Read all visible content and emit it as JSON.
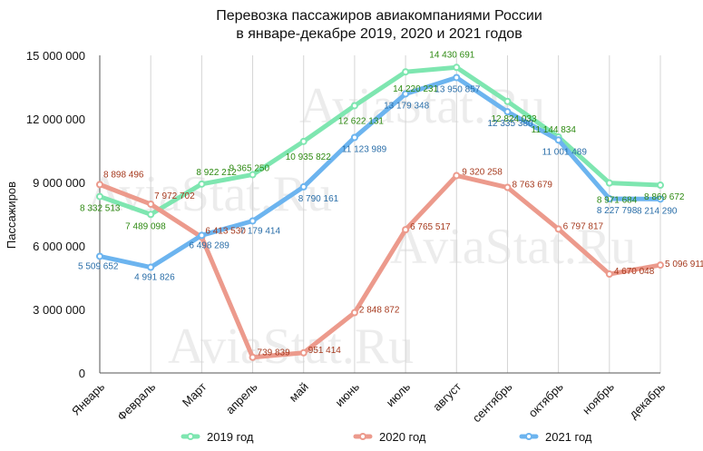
{
  "chart_data": {
    "type": "line",
    "title_lines": [
      "Перевозка пассажиров авиакомпаниями России",
      "в январе-декабре 2019, 2020 и 2021 годов"
    ],
    "ylabel": "Пассажиров",
    "xlabel": "",
    "ylim": [
      0,
      15000000
    ],
    "yticks": [
      0,
      3000000,
      6000000,
      9000000,
      12000000,
      15000000
    ],
    "ytick_labels": [
      "0",
      "3 000 000",
      "6 000 000",
      "9 000 000",
      "12 000 000",
      "15 000 000"
    ],
    "grid": "vertical",
    "legend_position": "bottom",
    "categories": [
      "Январь",
      "Февраль",
      "Март",
      "апрель",
      "май",
      "июнь",
      "июль",
      "август",
      "сентябрь",
      "октябрь",
      "ноябрь",
      "декабрь"
    ],
    "series": [
      {
        "name": "2019 год",
        "color": "#7ee6b0",
        "label_color": "#2e8a12",
        "values": [
          8332513,
          7489098,
          8922212,
          9365250,
          10935822,
          12622131,
          14220231,
          14430691,
          12824033,
          11144834,
          8971684,
          8869672
        ],
        "labels": [
          "8 332 513",
          "7 489 098",
          "8 922 212",
          "9 365 250",
          "10 935 822",
          "12 622 131",
          "14 220 231",
          "14 430 691",
          "12 824 033",
          "11 144 834",
          "8 971 684",
          "8 869 672"
        ]
      },
      {
        "name": "2020 год",
        "color": "#ec9a8c",
        "label_color": "#a63a1e",
        "values": [
          8898496,
          7972702,
          6413530,
          739839,
          951414,
          2848872,
          6765517,
          9320258,
          8763679,
          6797817,
          4670048,
          5096911
        ],
        "labels": [
          "8 898 496",
          "7 972 702",
          "6 413 530",
          "739 839",
          "951 414",
          "2 848 872",
          "6 765 517",
          "9 320 258",
          "8 763 679",
          "6 797 817",
          "4 670 048",
          "5 096 911"
        ]
      },
      {
        "name": "2021 год",
        "color": "#6cb4ef",
        "label_color": "#2a6ea8",
        "values": [
          5509652,
          4991826,
          6498289,
          7179414,
          8790161,
          11123989,
          13179348,
          13950857,
          12335380,
          11001489,
          8227798,
          8214290
        ],
        "labels": [
          "5 509 652",
          "4 991 826",
          "6 498 289",
          "7 179 414",
          "8 790 161",
          "11 123 989",
          "13 179 348",
          "13 950 857",
          "12 335 380",
          "11 001 489",
          "8 227 798",
          "8 214 290"
        ]
      }
    ],
    "watermark": "AviaStat.Ru"
  }
}
